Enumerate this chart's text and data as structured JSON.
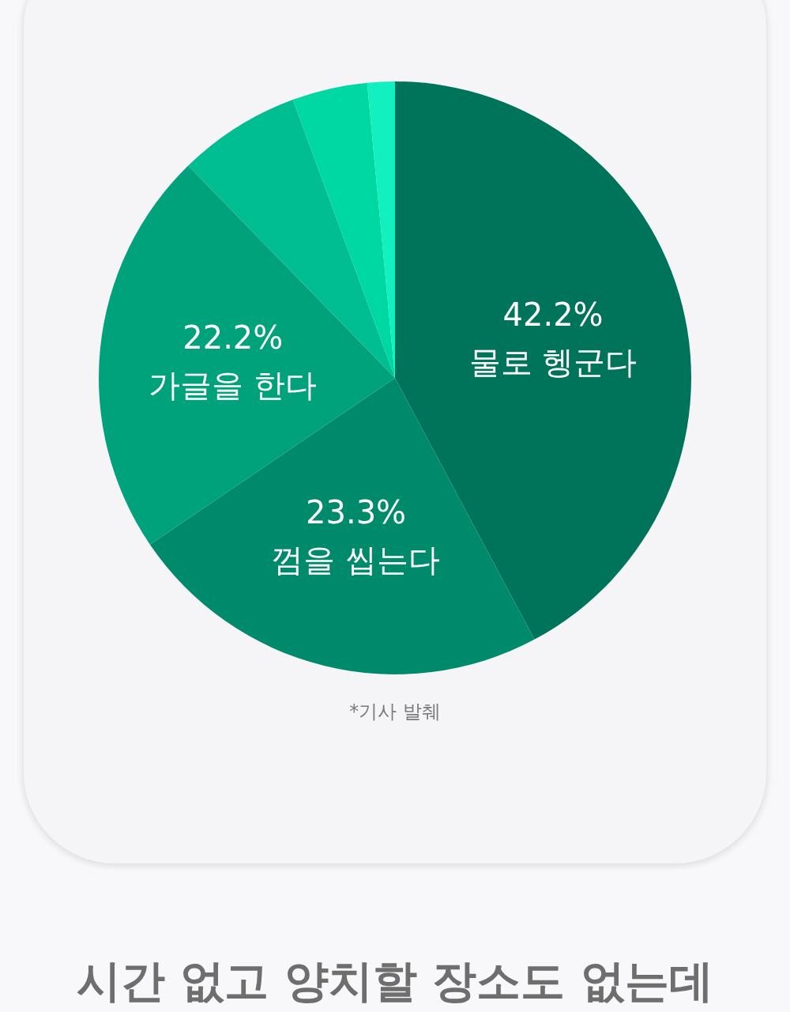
{
  "chart_data": {
    "type": "pie",
    "categories": [
      "물로 헹군다",
      "껌을 씹는다",
      "가글을 한다",
      null,
      null,
      null
    ],
    "values": [
      42.2,
      23.3,
      22.2,
      6.7,
      4.1,
      1.5
    ],
    "colors": [
      "#00745a",
      "#008a6c",
      "#00a27c",
      "#00bd92",
      "#00d8a4",
      "#12f0c0"
    ],
    "value_labels": [
      "42.2%",
      "23.3%",
      "22.2%",
      null,
      null,
      null
    ],
    "annotations": [
      "*기사 발췌",
      "시간 없고 양치할 장소도 없는데"
    ]
  }
}
